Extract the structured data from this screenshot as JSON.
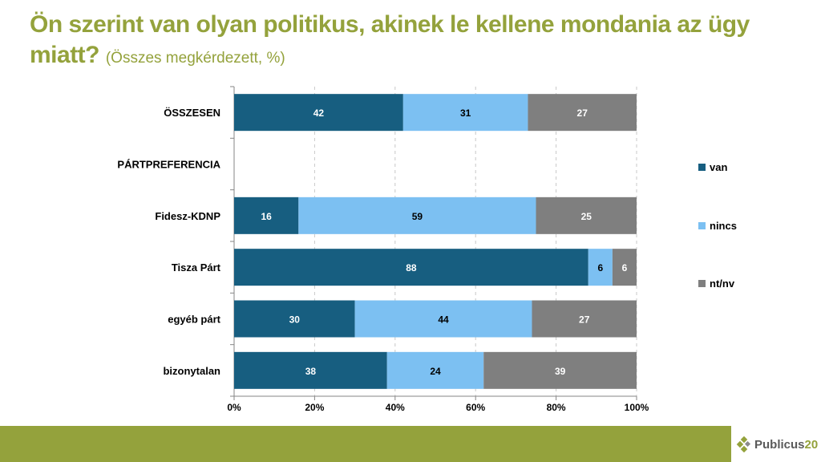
{
  "header": {
    "title": "Ön szerint van olyan politikus, akinek le kellene mondania az ügy miatt?",
    "subtitle": "(Összes megkérdezett, %)"
  },
  "branding": {
    "logo_text": "Publicus",
    "logo_num": "20",
    "accent": "#94a23c"
  },
  "chart_data": {
    "type": "bar",
    "orientation": "horizontal",
    "stacked": "percent",
    "title": "Ön szerint van olyan politikus, akinek le kellene mondania az ügy miatt? (Összes megkérdezett, %)",
    "categories": [
      "ÖSSZESEN",
      "PÁRTPREFERENCIA",
      "Fidesz-KDNP",
      "Tisza Párt",
      "egyéb párt",
      "bizonytalan"
    ],
    "series": [
      {
        "name": "van",
        "color": "#175e80",
        "label_color": "#ffffff",
        "values": [
          42,
          null,
          16,
          88,
          30,
          38
        ]
      },
      {
        "name": "nincs",
        "color": "#7cc0f2",
        "label_color": "#000000",
        "values": [
          31,
          null,
          59,
          6,
          44,
          24
        ]
      },
      {
        "name": "nt/nv",
        "color": "#7f7f7f",
        "label_color": "#ffffff",
        "values": [
          27,
          null,
          25,
          6,
          27,
          39
        ]
      }
    ],
    "xlim": [
      0,
      100
    ],
    "xticks": [
      "0%",
      "20%",
      "40%",
      "60%",
      "80%",
      "100%"
    ],
    "grid": true,
    "legend_position": "right",
    "xlabel": "",
    "ylabel": ""
  }
}
